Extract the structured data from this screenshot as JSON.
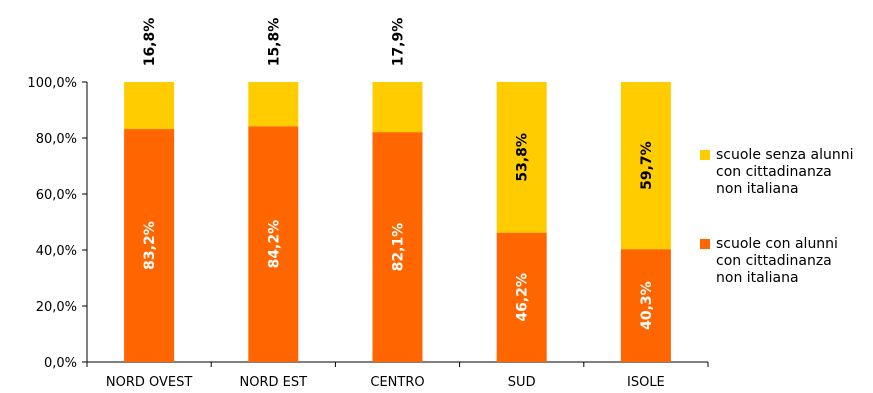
{
  "chart_data": {
    "type": "bar",
    "stacked": true,
    "categories": [
      "NORD OVEST",
      "NORD EST",
      "CENTRO",
      "SUD",
      "ISOLE"
    ],
    "series": [
      {
        "name": "scuole con alunni con cittadinanza non italiana",
        "color": "#FF6600",
        "values": [
          83.2,
          84.2,
          82.1,
          46.2,
          40.3
        ],
        "labels": [
          "83,2%",
          "84,2%",
          "82,1%",
          "46,2%",
          "40,3%"
        ],
        "label_color": "#ffffff"
      },
      {
        "name": "scuole senza alunni con cittadinanza non italiana",
        "color": "#FFCC00",
        "values": [
          16.8,
          15.8,
          17.9,
          53.8,
          59.7
        ],
        "labels": [
          "16,8%",
          "15,8%",
          "17,9%",
          "53,8%",
          "59,7%"
        ],
        "label_color": "#000000"
      }
    ],
    "ylim": [
      0,
      100
    ],
    "yticks": [
      0,
      20,
      40,
      60,
      80,
      100
    ],
    "ytick_labels": [
      "0,0%",
      "20,0%",
      "40,0%",
      "60,0%",
      "80,0%",
      "100,0%"
    ],
    "title": "",
    "xlabel": "",
    "ylabel": "",
    "grid": false,
    "legend_position": "right"
  },
  "legend": {
    "senza": [
      "scuole senza alunni",
      "con cittadinanza",
      "non italiana"
    ],
    "con": [
      "scuole con alunni",
      "con cittadinanza",
      "non italiana"
    ]
  }
}
